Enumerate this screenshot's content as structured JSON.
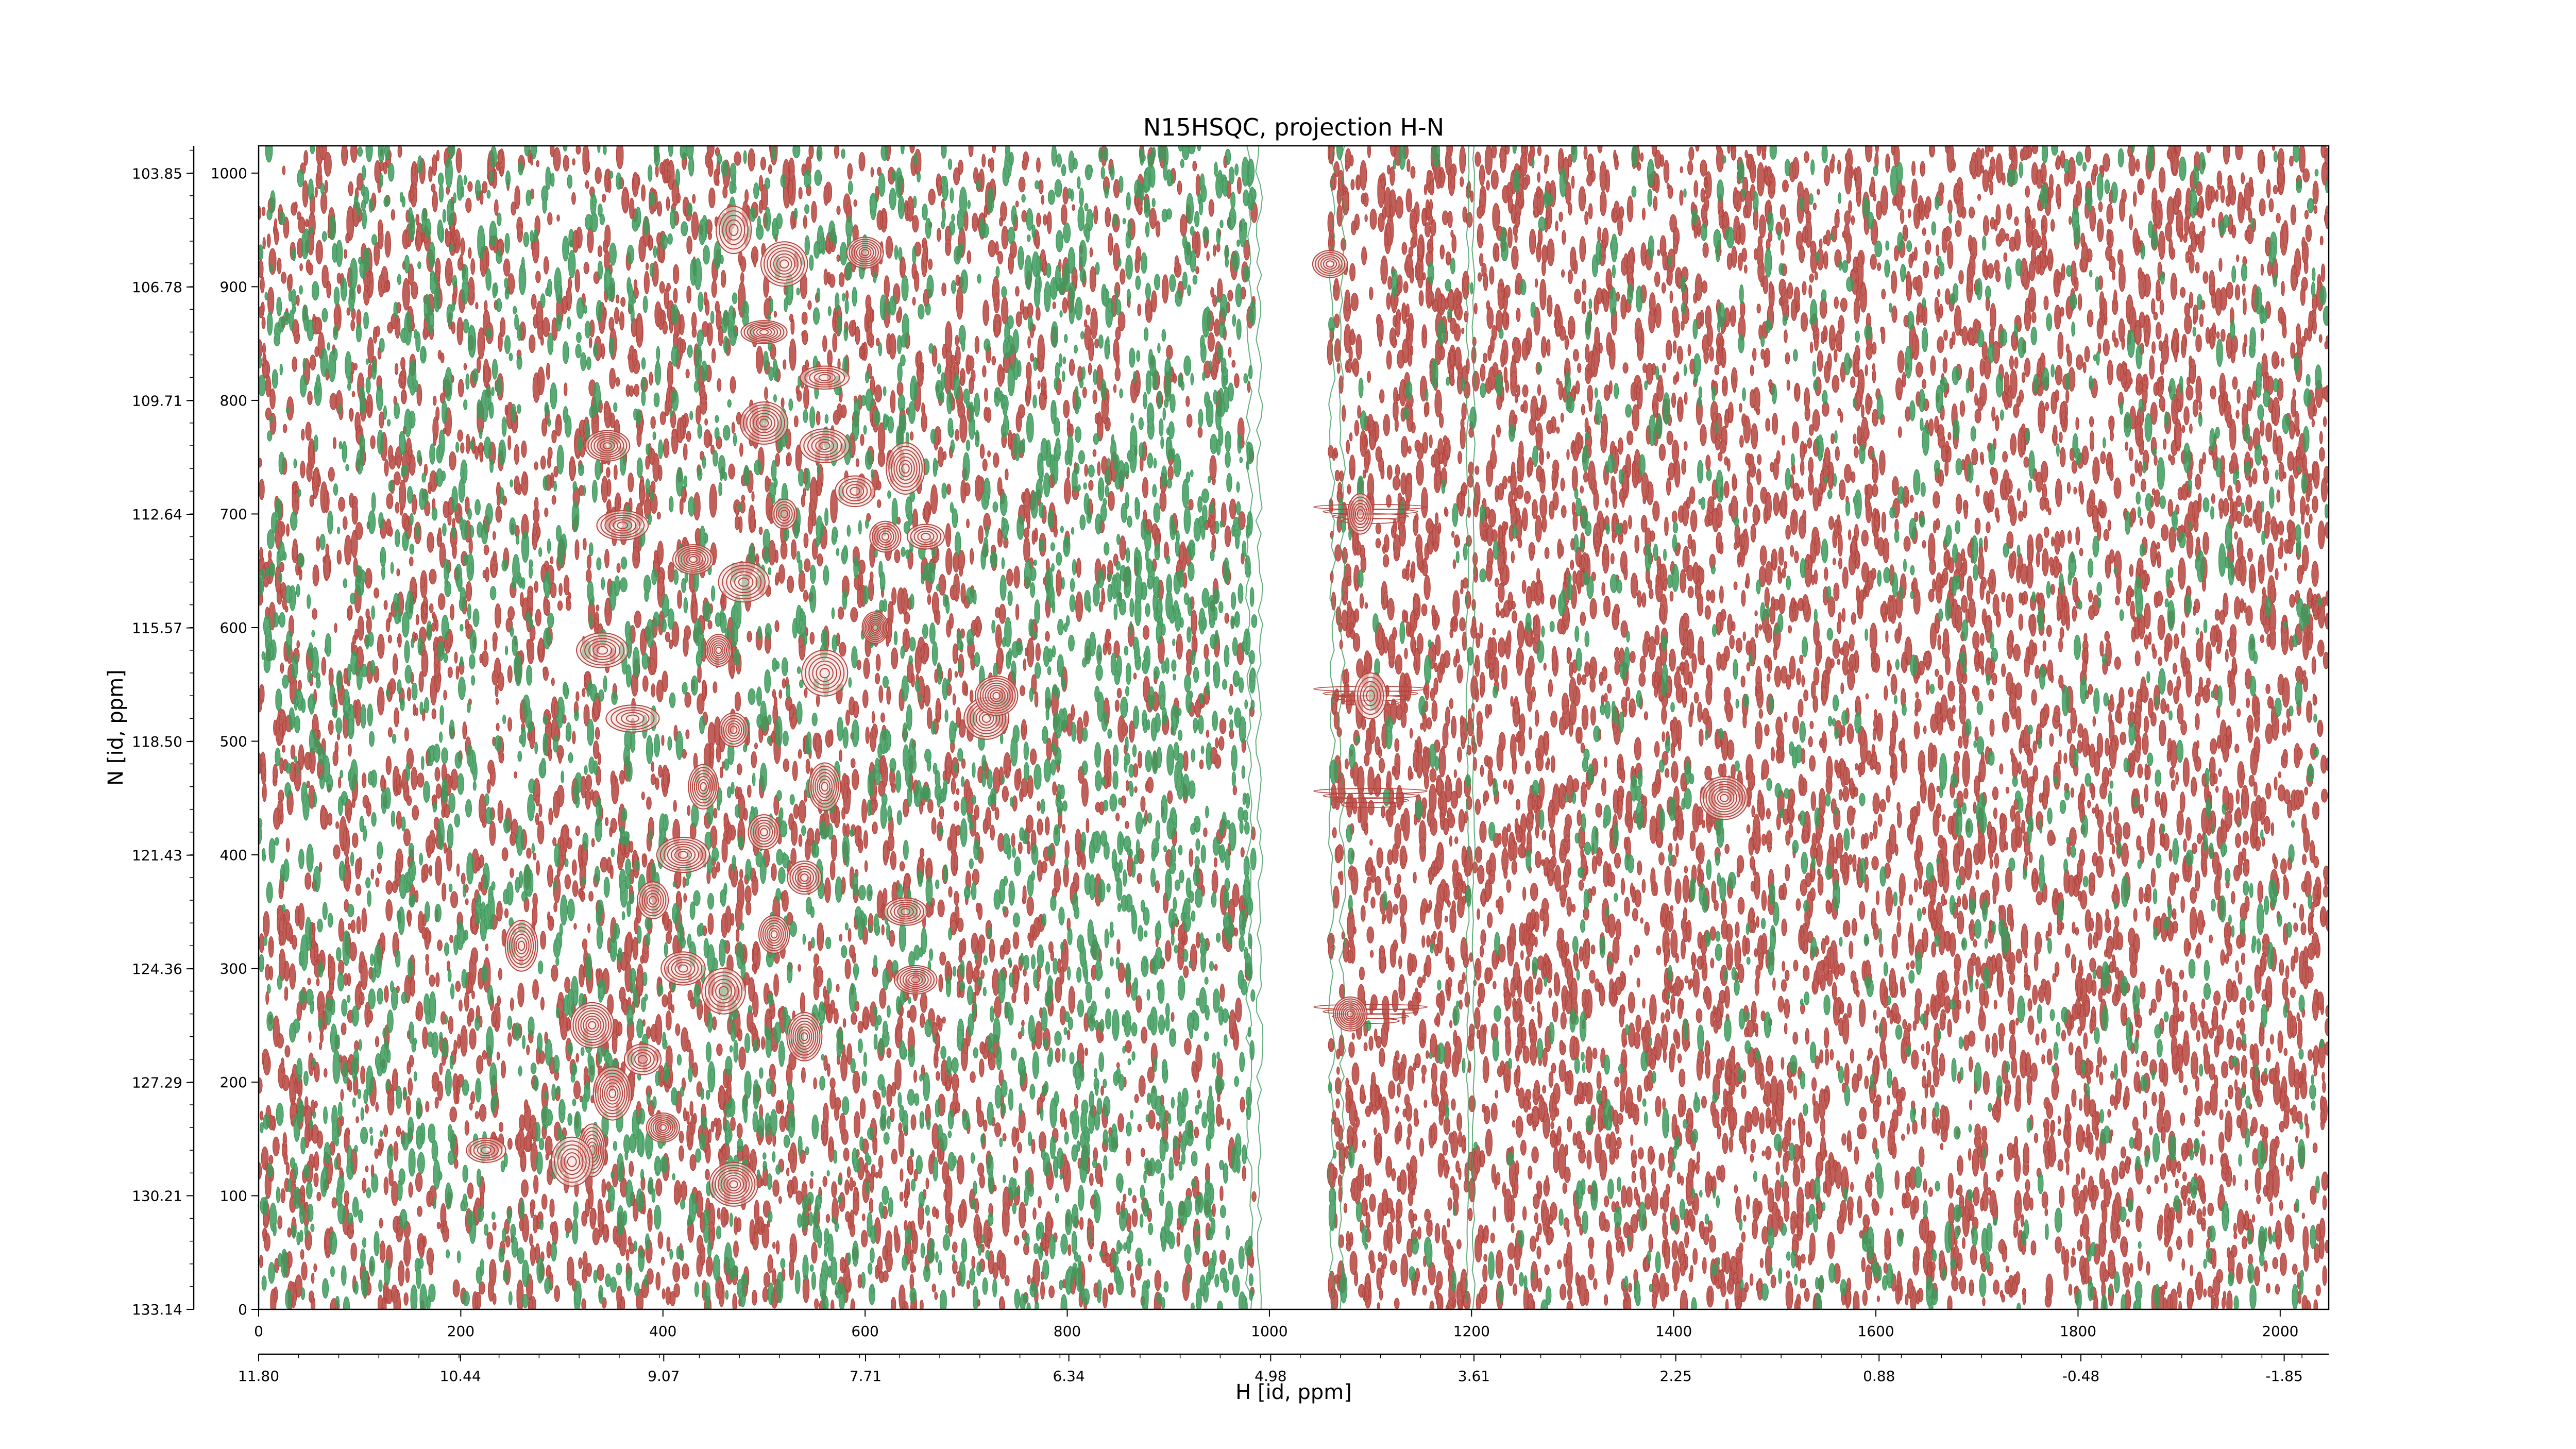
{
  "chart_data": {
    "type": "contour",
    "title": "N15HSQC, projection H-N",
    "xlabel": "H [id, ppm]",
    "ylabel": "N [id, ppm]",
    "x_index_axis": {
      "range": [
        0,
        2048
      ],
      "ticks": [
        0,
        200,
        400,
        600,
        800,
        1000,
        1200,
        1400,
        1600,
        1800,
        2000
      ],
      "tick_labels": [
        "0",
        "200",
        "400",
        "600",
        "800",
        "1000",
        "1200",
        "1400",
        "1600",
        "1800",
        "2000"
      ]
    },
    "x_ppm_axis": {
      "range": [
        11.8,
        -2.15
      ],
      "ticks": [
        11.8,
        10.44,
        9.07,
        7.71,
        6.34,
        4.98,
        3.61,
        2.25,
        0.88,
        -0.48,
        -1.85
      ],
      "tick_labels": [
        "11.80",
        "10.44",
        "9.07",
        "7.71",
        "6.34",
        "4.98",
        "3.61",
        "2.25",
        "0.88",
        "-0.48",
        "-1.85"
      ]
    },
    "y_index_axis": {
      "range": [
        0,
        1024
      ],
      "ticks": [
        0,
        100,
        200,
        300,
        400,
        500,
        600,
        700,
        800,
        900,
        1000
      ],
      "tick_labels": [
        "0",
        "100",
        "200",
        "300",
        "400",
        "500",
        "600",
        "700",
        "800",
        "900",
        "1000"
      ]
    },
    "y_ppm_axis": {
      "range": [
        133.14,
        103.14
      ],
      "ticks": [
        133.14,
        130.21,
        127.29,
        124.36,
        121.43,
        118.5,
        115.57,
        112.64,
        109.71,
        106.78,
        103.85
      ],
      "tick_labels": [
        "133.14",
        "130.21",
        "127.29",
        "124.36",
        "121.43",
        "118.50",
        "115.57",
        "112.64",
        "109.71",
        "106.78",
        "103.85"
      ]
    },
    "series": [
      {
        "color": "#b5443d"
      },
      {
        "color": "#3e9a5c"
      }
    ],
    "peaks": [
      {
        "x": 330,
        "y": 140
      },
      {
        "x": 260,
        "y": 320
      },
      {
        "x": 225,
        "y": 140
      },
      {
        "x": 310,
        "y": 130
      },
      {
        "x": 330,
        "y": 250
      },
      {
        "x": 350,
        "y": 190
      },
      {
        "x": 380,
        "y": 220
      },
      {
        "x": 400,
        "y": 160
      },
      {
        "x": 340,
        "y": 580
      },
      {
        "x": 360,
        "y": 690
      },
      {
        "x": 345,
        "y": 760
      },
      {
        "x": 390,
        "y": 360
      },
      {
        "x": 370,
        "y": 520
      },
      {
        "x": 420,
        "y": 400
      },
      {
        "x": 440,
        "y": 460
      },
      {
        "x": 470,
        "y": 510
      },
      {
        "x": 455,
        "y": 580
      },
      {
        "x": 480,
        "y": 640
      },
      {
        "x": 520,
        "y": 700
      },
      {
        "x": 500,
        "y": 420
      },
      {
        "x": 540,
        "y": 380
      },
      {
        "x": 560,
        "y": 460
      },
      {
        "x": 510,
        "y": 330
      },
      {
        "x": 460,
        "y": 280
      },
      {
        "x": 430,
        "y": 660
      },
      {
        "x": 500,
        "y": 860
      },
      {
        "x": 520,
        "y": 920
      },
      {
        "x": 470,
        "y": 950
      },
      {
        "x": 600,
        "y": 930
      },
      {
        "x": 560,
        "y": 760
      },
      {
        "x": 590,
        "y": 720
      },
      {
        "x": 620,
        "y": 680
      },
      {
        "x": 640,
        "y": 740
      },
      {
        "x": 660,
        "y": 680
      },
      {
        "x": 720,
        "y": 520
      },
      {
        "x": 730,
        "y": 540
      },
      {
        "x": 640,
        "y": 350
      },
      {
        "x": 650,
        "y": 290
      },
      {
        "x": 470,
        "y": 110
      },
      {
        "x": 560,
        "y": 560
      },
      {
        "x": 610,
        "y": 600
      },
      {
        "x": 540,
        "y": 240
      },
      {
        "x": 420,
        "y": 300
      },
      {
        "x": 560,
        "y": 820
      },
      {
        "x": 500,
        "y": 780
      },
      {
        "x": 1090,
        "y": 700
      },
      {
        "x": 1100,
        "y": 540
      },
      {
        "x": 1080,
        "y": 260
      },
      {
        "x": 1060,
        "y": 920
      },
      {
        "x": 1450,
        "y": 450
      }
    ]
  }
}
